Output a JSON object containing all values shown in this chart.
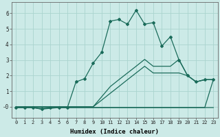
{
  "title": "",
  "xlabel": "Humidex (Indice chaleur)",
  "bg_color": "#cceae7",
  "line_color": "#1a6b5a",
  "grid_color": "#aad4ce",
  "xlim": [
    -0.5,
    23.5
  ],
  "ylim": [
    -0.7,
    6.7
  ],
  "xticks": [
    0,
    1,
    2,
    3,
    4,
    5,
    6,
    7,
    8,
    9,
    10,
    11,
    12,
    13,
    14,
    15,
    16,
    17,
    18,
    19,
    20,
    21,
    22,
    23
  ],
  "yticks": [
    0,
    1,
    2,
    3,
    4,
    5,
    6
  ],
  "series": [
    {
      "x": [
        0,
        1,
        2,
        3,
        4,
        5,
        6,
        7,
        8,
        9,
        10,
        11,
        12,
        13,
        14,
        15,
        16,
        17,
        18,
        19,
        20,
        21,
        22,
        23
      ],
      "y": [
        0,
        0,
        0,
        0,
        0,
        0,
        0,
        0,
        0,
        0,
        0.43,
        0.87,
        1.3,
        1.74,
        2.17,
        2.6,
        2.17,
        2.17,
        2.17,
        2.17,
        2.0,
        1.6,
        1.74,
        1.74
      ],
      "marker": false,
      "lw": 0.9
    },
    {
      "x": [
        0,
        1,
        2,
        3,
        4,
        5,
        6,
        7,
        8,
        9,
        10,
        11,
        12,
        13,
        14,
        15,
        16,
        17,
        18,
        19,
        20,
        21,
        22,
        23
      ],
      "y": [
        0,
        0,
        0,
        0,
        0,
        0,
        0,
        0,
        0,
        0,
        0.65,
        1.3,
        1.74,
        2.17,
        2.6,
        3.04,
        2.6,
        2.6,
        2.6,
        3.04,
        2.0,
        1.6,
        1.74,
        1.74
      ],
      "marker": false,
      "lw": 0.9
    },
    {
      "x": [
        0,
        1,
        2,
        3,
        4,
        5,
        6,
        7,
        8,
        9,
        10,
        11,
        12,
        13,
        14,
        15,
        16,
        17,
        18,
        19,
        20,
        21,
        22,
        23
      ],
      "y": [
        -0.05,
        -0.05,
        -0.05,
        -0.15,
        -0.1,
        -0.05,
        -0.05,
        -0.05,
        -0.05,
        -0.05,
        -0.05,
        -0.05,
        -0.05,
        -0.05,
        -0.05,
        -0.05,
        -0.05,
        -0.05,
        -0.05,
        -0.05,
        -0.05,
        -0.05,
        -0.05,
        -0.05
      ],
      "marker": false,
      "lw": 0.9
    },
    {
      "x": [
        0,
        1,
        2,
        3,
        4,
        5,
        6,
        7,
        8,
        9,
        10,
        11,
        12,
        13,
        14,
        15,
        16,
        17,
        18,
        19,
        20,
        21,
        22,
        23
      ],
      "y": [
        -0.05,
        -0.05,
        -0.05,
        -0.05,
        -0.05,
        -0.05,
        -0.05,
        -0.05,
        -0.05,
        -0.05,
        -0.05,
        -0.05,
        -0.05,
        -0.05,
        -0.05,
        -0.05,
        -0.05,
        -0.05,
        -0.05,
        -0.05,
        -0.05,
        -0.05,
        -0.05,
        1.74
      ],
      "marker": false,
      "lw": 0.9
    },
    {
      "x": [
        0,
        1,
        2,
        3,
        4,
        5,
        6,
        7,
        8,
        9,
        10,
        11,
        12,
        13,
        14,
        15,
        16,
        17,
        18,
        19,
        20,
        21,
        22,
        23
      ],
      "y": [
        -0.05,
        -0.05,
        -0.05,
        -0.15,
        -0.05,
        -0.05,
        -0.05,
        1.6,
        1.8,
        2.8,
        3.5,
        5.5,
        5.6,
        5.3,
        6.2,
        5.3,
        5.4,
        3.9,
        4.5,
        3.0,
        2.0,
        1.6,
        1.74,
        1.74
      ],
      "marker": true,
      "lw": 0.9
    }
  ]
}
